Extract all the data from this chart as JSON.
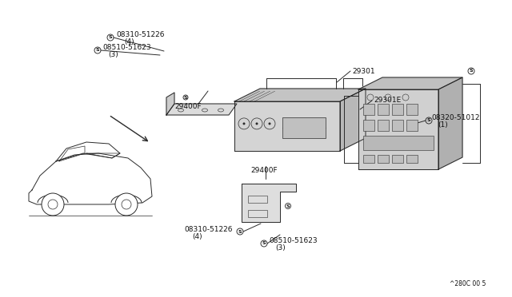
{
  "bg": "#ffffff",
  "lc": "#2a2a2a",
  "tc": "#111111",
  "watermark": "^280C 00 5",
  "fs_label": 6.5,
  "fs_water": 5.5,
  "lw_main": 0.7,
  "lw_thin": 0.5,
  "label_top1_main": "08310-51226",
  "label_top1_sub": "(4)",
  "label_top2_main": "08510-51623",
  "label_top2_sub": "(3)",
  "label_29400F_top": "29400F",
  "label_29301": "29301",
  "label_29301E": "29301E",
  "label_08320_main": "08320-51012",
  "label_08320_sub": "(1)",
  "label_29400F_bot": "29400F",
  "label_bot1_main": "08310-51226",
  "label_bot1_sub": "(4)",
  "label_bot2_main": "08510-51623",
  "label_bot2_sub": "(3)"
}
